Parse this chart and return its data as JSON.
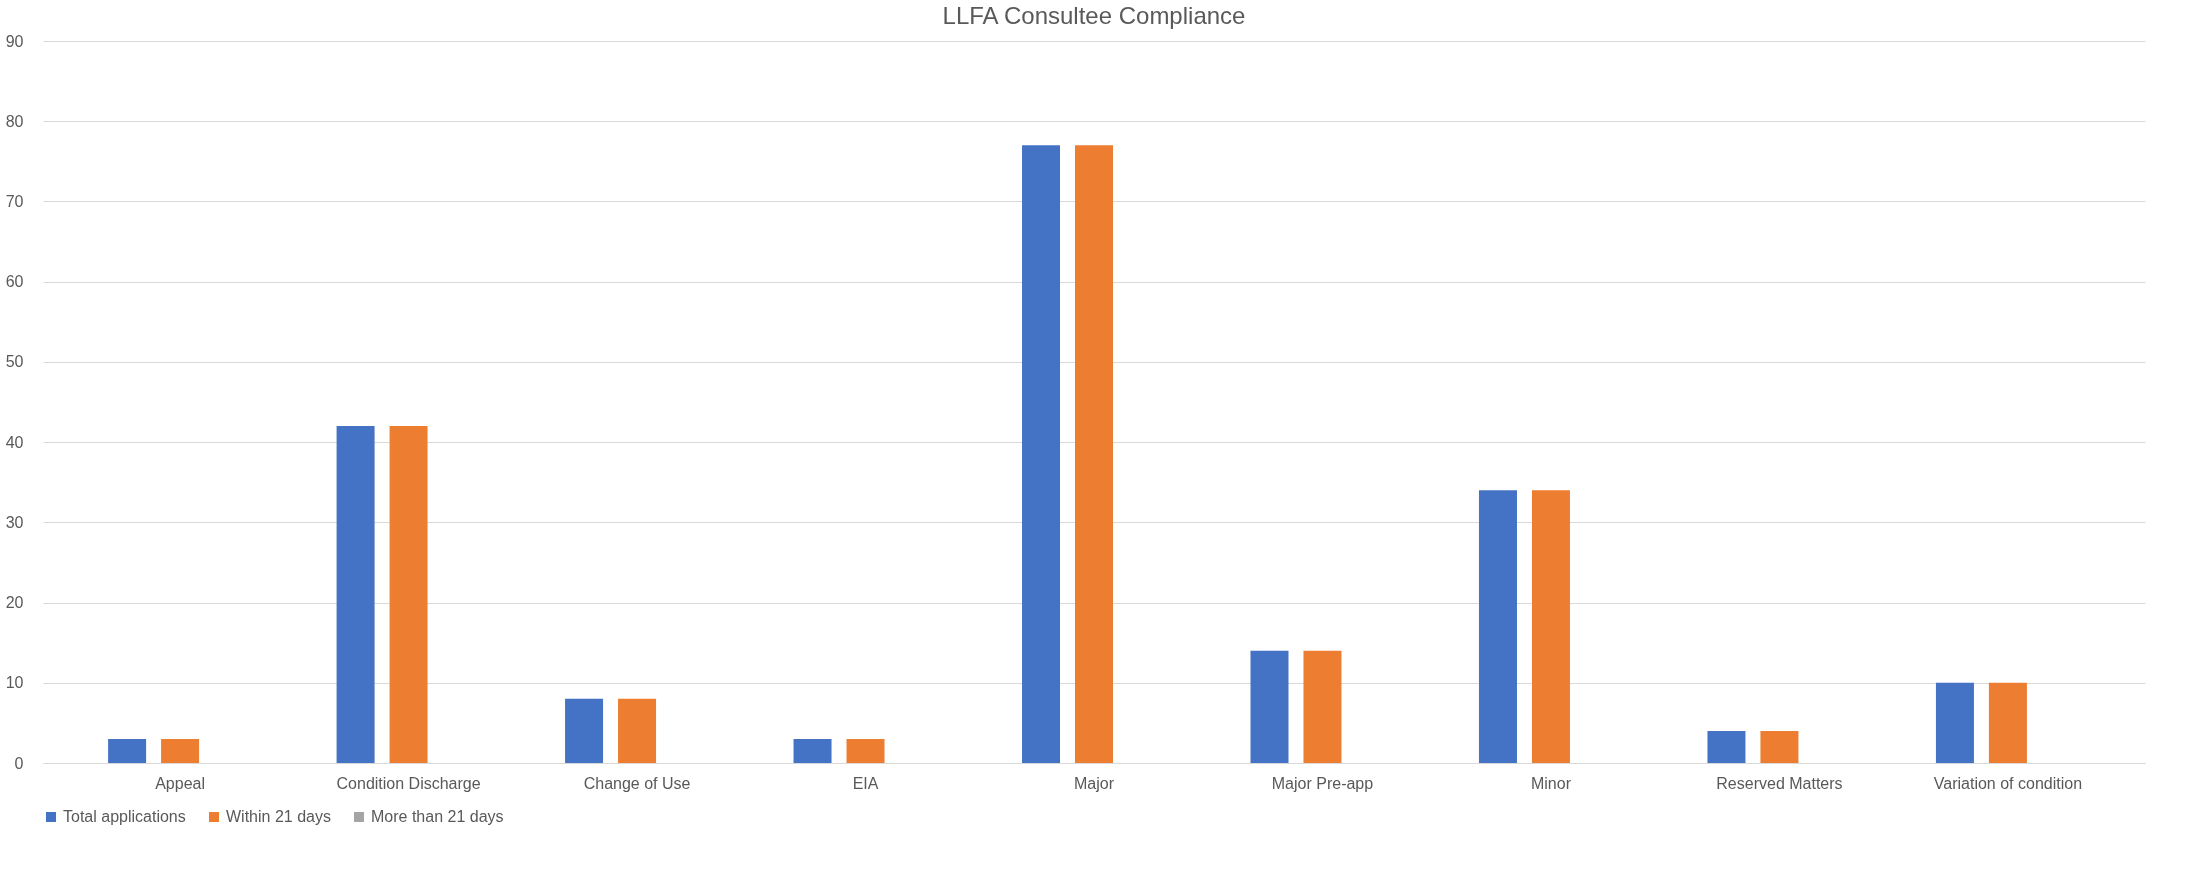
{
  "chart_data": {
    "type": "bar",
    "title": "LLFA Consultee Compliance",
    "categories": [
      "Appeal",
      "Condition Discharge",
      "Change of Use",
      "EIA",
      "Major",
      "Major Pre-app",
      "Minor",
      "Reserved Matters",
      "Variation of condition"
    ],
    "series": [
      {
        "name": "Total applications",
        "color": "#4472c4",
        "values": [
          3,
          42,
          8,
          3,
          77,
          14,
          34,
          4,
          10
        ]
      },
      {
        "name": "Within 21 days",
        "color": "#ed7d31",
        "values": [
          3,
          42,
          8,
          3,
          77,
          14,
          34,
          4,
          10
        ]
      },
      {
        "name": "More than 21 days",
        "color": "#a5a5a5",
        "values": [
          0,
          0,
          0,
          0,
          0,
          0,
          0,
          0,
          0
        ]
      }
    ],
    "ylim": [
      0,
      90
    ],
    "yticks": [
      0,
      10,
      20,
      30,
      40,
      50,
      60,
      70,
      80,
      90
    ],
    "grid": "y",
    "legend": "bottom"
  }
}
